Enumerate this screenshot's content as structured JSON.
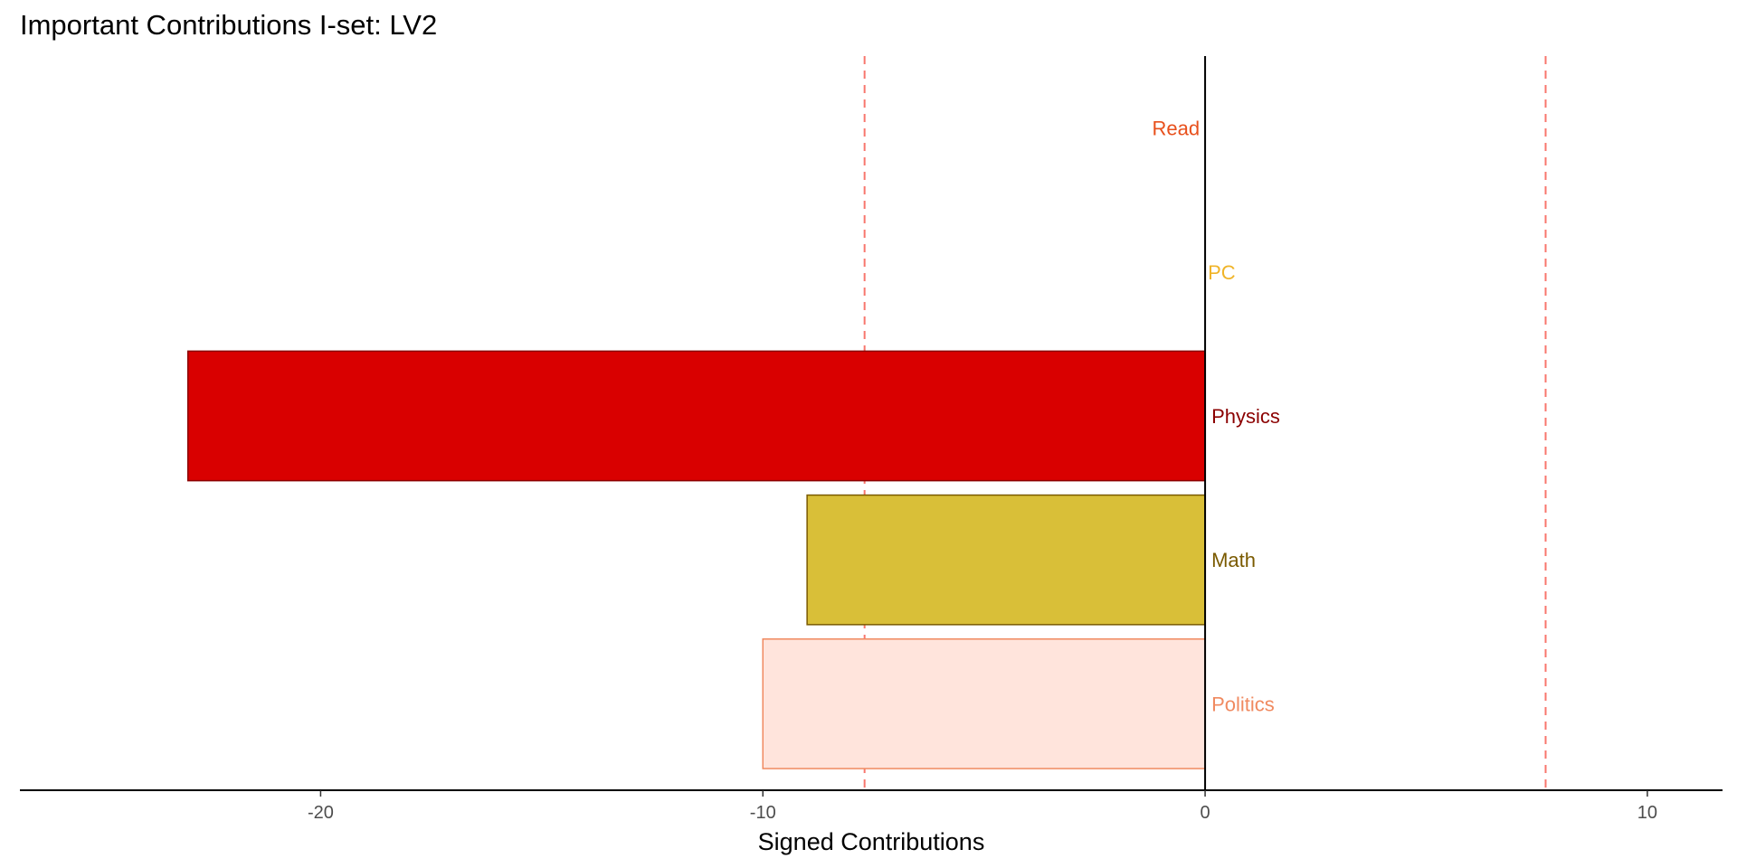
{
  "chart_data": {
    "type": "bar",
    "orientation": "horizontal",
    "title": "Important Contributions I-set: LV2",
    "xlabel": "Signed Contributions",
    "ylabel": "",
    "xlim": [
      -26.8,
      11.7
    ],
    "x_ticks": [
      -20,
      -10,
      0,
      10
    ],
    "x_tick_labels": [
      "-20",
      "-10",
      "0",
      "10"
    ],
    "reference_lines": [
      -7.7,
      7.7
    ],
    "reference_line_color": "#f8766d",
    "grid": false,
    "legend": "none",
    "categories": [
      "Read",
      "PC",
      "Physics",
      "Math",
      "Politics"
    ],
    "values": [
      0,
      0,
      -23,
      -9,
      -10
    ],
    "fill_colors": [
      "#e8501c",
      "#f0b428",
      "#d90000",
      "#d9bf38",
      "#ffe4dc"
    ],
    "border_colors": [
      "#e8501c",
      "#f0b428",
      "#8b0000",
      "#7a5a00",
      "#f08a60"
    ],
    "label_colors": [
      "#e8501c",
      "#f0b428",
      "#8b0000",
      "#7a5a00",
      "#f08a60"
    ]
  }
}
